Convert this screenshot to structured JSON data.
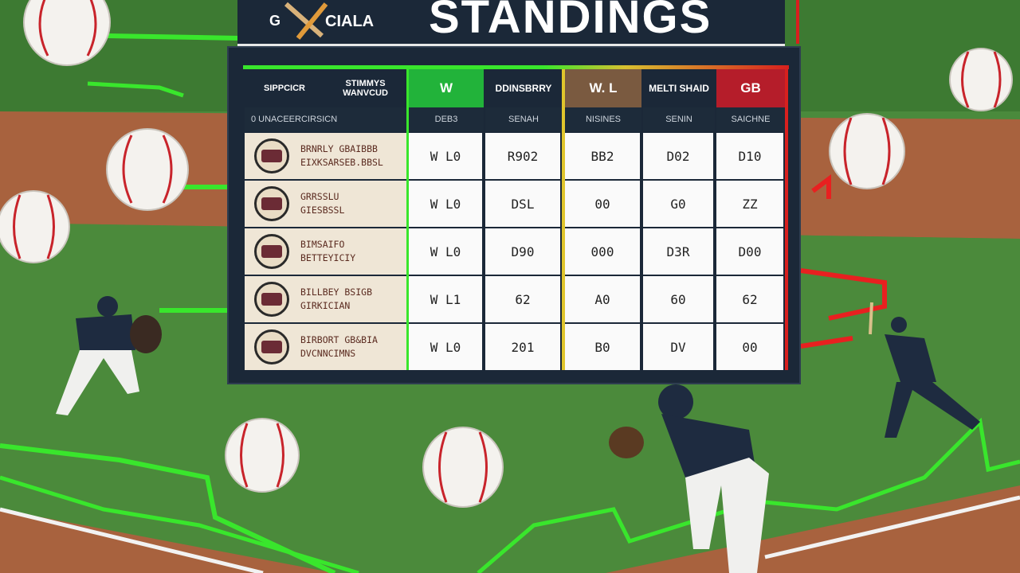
{
  "header": {
    "logo_left": "G",
    "logo_right": "CIALA",
    "title": "STANDINGS"
  },
  "table": {
    "header_top": [
      "SIPPCICR",
      "STIMMYS WANVCUD",
      "W",
      "DDINSBRRY",
      "W. L",
      "MELTI SHAID",
      "GB"
    ],
    "header_sub": [
      "0 UNACEERCIRSICN",
      "DEB3",
      "SENAH",
      "NISINES",
      "SENIN",
      "SAICHNE"
    ],
    "rows": [
      {
        "team": [
          "BRNRLY GBAIBBB",
          "EIXKSARSEB.BBSL"
        ],
        "cells": [
          "W L0",
          "R902",
          "BB2",
          "D02",
          "D10"
        ]
      },
      {
        "team": [
          "GRRSSLU",
          "GIESBSSL"
        ],
        "cells": [
          "W L0",
          "DSL",
          "00",
          "G0",
          "ZZ"
        ]
      },
      {
        "team": [
          "BIMSAIFO",
          "BETTEYICIY"
        ],
        "cells": [
          "W L0",
          "D90",
          "000",
          "D3R",
          "D00"
        ]
      },
      {
        "team": [
          "BILLBEY BSIGB",
          "GIRKICIAN"
        ],
        "cells": [
          "W L1",
          "62",
          "A0",
          "60",
          "62"
        ]
      },
      {
        "team": [
          "BIRBORT GB&BIA",
          "DVCNNCIMNS"
        ],
        "cells": [
          "W L0",
          "201",
          "B0",
          "DV",
          "00"
        ]
      }
    ]
  }
}
